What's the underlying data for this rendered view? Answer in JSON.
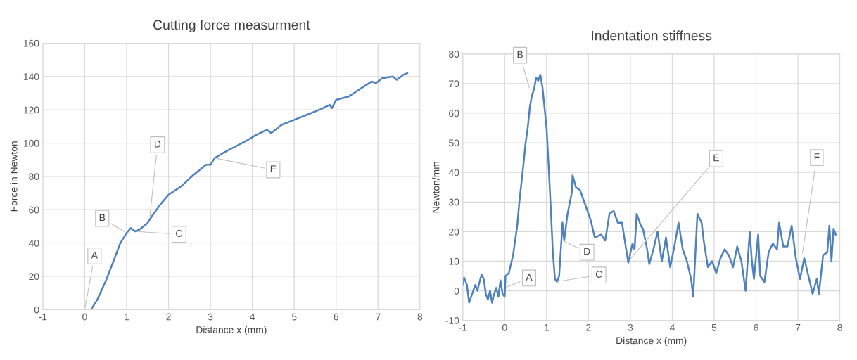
{
  "chart_data": [
    {
      "type": "line",
      "title": "Cutting force measurment",
      "xlabel": "Distance x (mm)",
      "ylabel": "Force in Newton",
      "x": [
        -0.9,
        -0.2,
        0,
        0.15,
        0.3,
        0.5,
        0.7,
        0.85,
        1.0,
        1.1,
        1.15,
        1.2,
        1.3,
        1.5,
        1.6,
        1.8,
        2.0,
        2.3,
        2.6,
        2.9,
        3.0,
        3.1,
        3.3,
        3.6,
        3.9,
        4.1,
        4.35,
        4.45,
        4.7,
        5.0,
        5.3,
        5.6,
        5.85,
        5.9,
        6.0,
        6.3,
        6.6,
        6.85,
        6.95,
        7.1,
        7.35,
        7.45,
        7.6,
        7.7
      ],
      "series": [
        {
          "color": "#4f81bd",
          "values": [
            0,
            0,
            0,
            0,
            6,
            17,
            30,
            40,
            46,
            49,
            48,
            47,
            48,
            52,
            56,
            63,
            69,
            74,
            81,
            87,
            87,
            91,
            94,
            98,
            102,
            105,
            108,
            106,
            111,
            114,
            117,
            120,
            123,
            121,
            126,
            128,
            133,
            137,
            136,
            139,
            140,
            138,
            141,
            142
          ]
        }
      ],
      "xlim": [
        -1,
        8
      ],
      "xticks": [
        -1,
        0,
        1,
        2,
        3,
        4,
        5,
        6,
        7,
        8
      ],
      "ylim": [
        0,
        160
      ],
      "yticks": [
        0,
        20,
        40,
        60,
        80,
        100,
        120,
        140,
        160
      ],
      "grid": true,
      "marker": "none",
      "line_style": "solid",
      "annotations": [
        {
          "text": "A",
          "x": 0,
          "y": 0
        },
        {
          "text": "B",
          "x": 1.0,
          "y": 46
        },
        {
          "text": "C",
          "x": 1.2,
          "y": 47
        },
        {
          "text": "D",
          "x": 1.55,
          "y": 55
        },
        {
          "text": "E",
          "x": 3.1,
          "y": 91
        }
      ]
    },
    {
      "type": "line",
      "title": "Indentation stiffness",
      "xlabel": "Distance x (mm)",
      "ylabel": "Newton/mm",
      "x": [
        -1,
        -0.97,
        -0.9,
        -0.85,
        -0.8,
        -0.7,
        -0.65,
        -0.6,
        -0.55,
        -0.5,
        -0.45,
        -0.4,
        -0.35,
        -0.3,
        -0.25,
        -0.2,
        -0.15,
        -0.1,
        -0.05,
        0,
        0.02,
        0.1,
        0.2,
        0.3,
        0.35,
        0.45,
        0.5,
        0.55,
        0.6,
        0.65,
        0.7,
        0.75,
        0.8,
        0.85,
        0.9,
        0.95,
        1.0,
        1.05,
        1.1,
        1.15,
        1.2,
        1.25,
        1.3,
        1.35,
        1.38,
        1.42,
        1.5,
        1.6,
        1.62,
        1.7,
        1.8,
        1.95,
        2.05,
        2.15,
        2.3,
        2.4,
        2.5,
        2.6,
        2.7,
        2.8,
        2.9,
        2.95,
        3.05,
        3.1,
        3.15,
        3.25,
        3.3,
        3.4,
        3.45,
        3.55,
        3.65,
        3.75,
        3.85,
        3.95,
        4.05,
        4.15,
        4.25,
        4.35,
        4.45,
        4.5,
        4.55,
        4.6,
        4.7,
        4.75,
        4.85,
        4.95,
        5.05,
        5.15,
        5.25,
        5.35,
        5.45,
        5.55,
        5.65,
        5.75,
        5.85,
        5.9,
        5.95,
        6.05,
        6.1,
        6.2,
        6.3,
        6.4,
        6.5,
        6.55,
        6.65,
        6.75,
        6.85,
        6.95,
        7.05,
        7.15,
        7.25,
        7.35,
        7.45,
        7.5,
        7.6,
        7.7,
        7.75,
        7.8,
        7.85,
        7.9
      ],
      "series": [
        {
          "color": "#4f81bd",
          "values": [
            2,
            4.5,
            2,
            -4,
            -2,
            2,
            0,
            3,
            5.5,
            4,
            -1,
            -3,
            0,
            -4,
            -1,
            1,
            -2,
            3.5,
            -1,
            -2,
            5,
            6,
            12,
            22,
            30,
            43,
            50,
            55,
            62,
            66,
            68,
            72,
            71,
            73,
            69,
            62,
            55,
            42,
            28,
            13,
            4,
            3,
            5,
            16,
            23,
            17,
            26,
            33,
            39,
            35,
            34,
            28,
            24,
            18,
            19,
            17,
            26,
            27,
            23,
            23,
            14,
            9.5,
            16,
            14,
            26,
            22,
            21,
            14,
            9,
            14,
            20,
            10,
            18,
            8,
            15,
            23,
            14,
            10,
            4,
            -2,
            12,
            26,
            23,
            17,
            8,
            10,
            6,
            11,
            14,
            12,
            8,
            15,
            10,
            0,
            20,
            10,
            4,
            19,
            5,
            3,
            13,
            16,
            14,
            23,
            15,
            15,
            22,
            11,
            4,
            11,
            5,
            -1,
            4,
            -1,
            12,
            13,
            22,
            10,
            21,
            19
          ]
        }
      ],
      "xlim": [
        -1,
        8
      ],
      "xticks": [
        -1,
        0,
        1,
        2,
        3,
        4,
        5,
        6,
        7,
        8
      ],
      "ylim": [
        -10,
        80
      ],
      "yticks": [
        -10,
        0,
        10,
        20,
        30,
        40,
        50,
        60,
        70,
        80
      ],
      "grid": true,
      "marker": "none",
      "line_style": "solid",
      "annotations": [
        {
          "text": "A",
          "x": 0,
          "y": 1
        },
        {
          "text": "B",
          "x": 0.6,
          "y": 68
        },
        {
          "text": "C",
          "x": 1.2,
          "y": 3
        },
        {
          "text": "D",
          "x": 1.38,
          "y": 17
        },
        {
          "text": "E",
          "x": 2.95,
          "y": 10
        },
        {
          "text": "F",
          "x": 7.1,
          "y": 12
        }
      ]
    }
  ]
}
